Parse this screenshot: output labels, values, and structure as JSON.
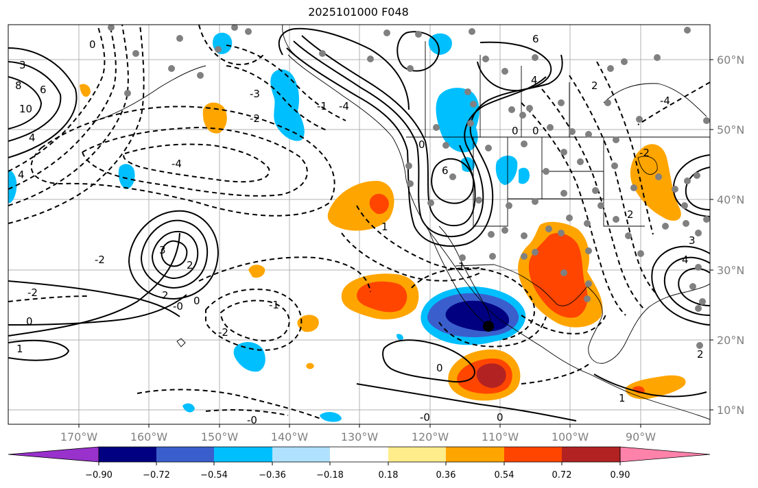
{
  "title": "2025101000 F048",
  "map": {
    "lon_labels": [
      "170°W",
      "160°W",
      "150°W",
      "140°W",
      "130°W",
      "120°W",
      "110°W",
      "100°W",
      "90°W"
    ],
    "lat_labels": [
      "60°N",
      "50°N",
      "40°N",
      "30°N",
      "20°N",
      "10°N"
    ],
    "contour_labels": [
      "0",
      "3",
      "8",
      "10",
      "6",
      "4",
      "4",
      "-4",
      "3",
      "2",
      "-2",
      "-2",
      "2",
      "0",
      "0",
      "-0",
      "1",
      "-1",
      "-2",
      "1",
      "6",
      "-4",
      "-3",
      "-2",
      "0",
      "6",
      "-1",
      "1",
      "0",
      "0",
      "2",
      "-2",
      "-4",
      "3",
      "4",
      "2",
      "1",
      "0",
      "-0",
      "-0",
      "0",
      "4",
      "2"
    ]
  },
  "colorbar": {
    "ticks": [
      "−0.90",
      "−0.72",
      "−0.54",
      "−0.36",
      "−0.18",
      "0.18",
      "0.36",
      "0.54",
      "0.72",
      "0.90"
    ],
    "colors": [
      "#9932cc",
      "#000080",
      "#3a5fcd",
      "#00bfff",
      "#b0e2ff",
      "#ffffff",
      "#ffec8b",
      "#ffa500",
      "#ff4500",
      "#b22222",
      "#ff82ab"
    ]
  },
  "palette": {
    "light_blue": "#b0e2ff",
    "sky_blue": "#00bfff",
    "royal_blue": "#3a5fcd",
    "navy": "#000080",
    "yellow": "#ffec8b",
    "orange": "#ffa500",
    "orange_red": "#ff4500",
    "firebrick": "#b22222",
    "dot_gray": "#808080"
  }
}
